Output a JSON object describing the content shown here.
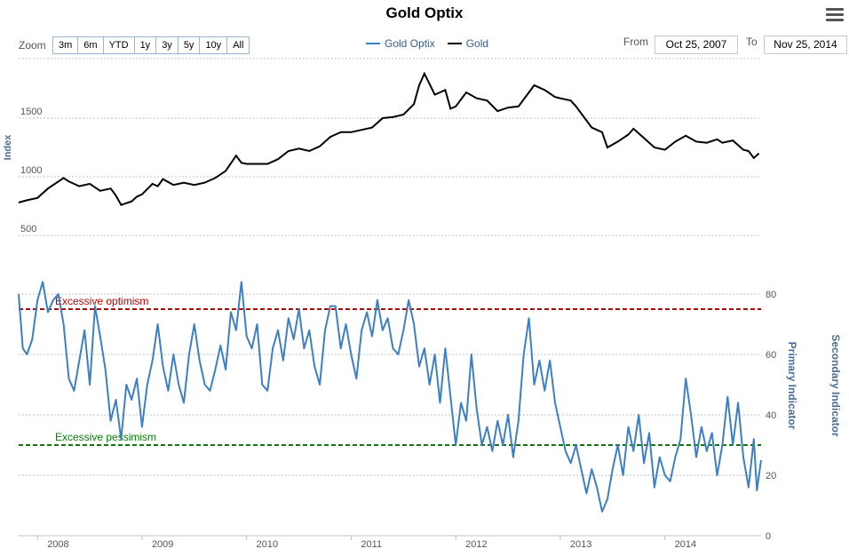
{
  "title": "Gold Optix",
  "zoom": {
    "label": "Zoom",
    "buttons": [
      "3m",
      "6m",
      "YTD",
      "1y",
      "3y",
      "5y",
      "10y",
      "All"
    ]
  },
  "date_range": {
    "from_label": "From",
    "from_value": "Oct 25, 2007",
    "to_label": "To",
    "to_value": "Nov 25, 2014"
  },
  "icons": {
    "menu": "hamburger-menu-icon"
  },
  "colors": {
    "optix": "#3d7fc4",
    "gold": "#000000",
    "optimism": "#c00000",
    "pessimism": "#008000"
  },
  "chart_data": [
    {
      "type": "line",
      "ylabel": "Index",
      "yticks": [
        500,
        1000,
        1500
      ],
      "ylim": [
        500,
        2000
      ],
      "grid": true,
      "series": [
        {
          "name": "Gold",
          "points": [
            [
              2007.82,
              780
            ],
            [
              2007.9,
              800
            ],
            [
              2008.0,
              820
            ],
            [
              2008.1,
              900
            ],
            [
              2008.2,
              960
            ],
            [
              2008.25,
              990
            ],
            [
              2008.3,
              960
            ],
            [
              2008.4,
              920
            ],
            [
              2008.5,
              940
            ],
            [
              2008.6,
              880
            ],
            [
              2008.7,
              900
            ],
            [
              2008.75,
              840
            ],
            [
              2008.8,
              760
            ],
            [
              2008.9,
              790
            ],
            [
              2008.95,
              830
            ],
            [
              2009.0,
              850
            ],
            [
              2009.1,
              940
            ],
            [
              2009.15,
              920
            ],
            [
              2009.2,
              980
            ],
            [
              2009.3,
              930
            ],
            [
              2009.4,
              950
            ],
            [
              2009.5,
              930
            ],
            [
              2009.6,
              950
            ],
            [
              2009.7,
              990
            ],
            [
              2009.8,
              1050
            ],
            [
              2009.9,
              1180
            ],
            [
              2009.95,
              1120
            ],
            [
              2010.0,
              1110
            ],
            [
              2010.1,
              1110
            ],
            [
              2010.2,
              1110
            ],
            [
              2010.3,
              1150
            ],
            [
              2010.4,
              1220
            ],
            [
              2010.5,
              1240
            ],
            [
              2010.6,
              1220
            ],
            [
              2010.7,
              1260
            ],
            [
              2010.8,
              1340
            ],
            [
              2010.9,
              1380
            ],
            [
              2011.0,
              1380
            ],
            [
              2011.1,
              1400
            ],
            [
              2011.2,
              1420
            ],
            [
              2011.3,
              1500
            ],
            [
              2011.4,
              1510
            ],
            [
              2011.5,
              1530
            ],
            [
              2011.6,
              1620
            ],
            [
              2011.65,
              1780
            ],
            [
              2011.7,
              1880
            ],
            [
              2011.8,
              1700
            ],
            [
              2011.9,
              1740
            ],
            [
              2011.95,
              1580
            ],
            [
              2012.0,
              1600
            ],
            [
              2012.1,
              1720
            ],
            [
              2012.2,
              1670
            ],
            [
              2012.3,
              1650
            ],
            [
              2012.4,
              1560
            ],
            [
              2012.5,
              1590
            ],
            [
              2012.6,
              1600
            ],
            [
              2012.7,
              1720
            ],
            [
              2012.75,
              1780
            ],
            [
              2012.85,
              1740
            ],
            [
              2012.95,
              1680
            ],
            [
              2013.0,
              1670
            ],
            [
              2013.1,
              1650
            ],
            [
              2013.15,
              1600
            ],
            [
              2013.25,
              1480
            ],
            [
              2013.3,
              1420
            ],
            [
              2013.4,
              1380
            ],
            [
              2013.45,
              1250
            ],
            [
              2013.55,
              1300
            ],
            [
              2013.65,
              1360
            ],
            [
              2013.7,
              1410
            ],
            [
              2013.8,
              1330
            ],
            [
              2013.9,
              1250
            ],
            [
              2014.0,
              1230
            ],
            [
              2014.1,
              1300
            ],
            [
              2014.2,
              1350
            ],
            [
              2014.3,
              1300
            ],
            [
              2014.4,
              1290
            ],
            [
              2014.5,
              1320
            ],
            [
              2014.55,
              1290
            ],
            [
              2014.65,
              1310
            ],
            [
              2014.7,
              1270
            ],
            [
              2014.75,
              1230
            ],
            [
              2014.8,
              1220
            ],
            [
              2014.85,
              1160
            ],
            [
              2014.9,
              1200
            ]
          ]
        }
      ]
    },
    {
      "type": "line",
      "ylabel": "Primary Indicator",
      "y2label": "Secondary Indicator",
      "yticks": [
        0,
        20,
        40,
        60,
        80
      ],
      "ylim": [
        0,
        85
      ],
      "xticks": [
        "2008",
        "2009",
        "2010",
        "2011",
        "2012",
        "2013",
        "2014"
      ],
      "grid": true,
      "reference_lines": [
        {
          "label": "Excessive optimism",
          "value": 75
        },
        {
          "label": "Excessive pessimism",
          "value": 30
        }
      ],
      "series": [
        {
          "name": "Gold Optix",
          "points": [
            [
              2007.82,
              80
            ],
            [
              2007.86,
              62
            ],
            [
              2007.9,
              60
            ],
            [
              2007.95,
              65
            ],
            [
              2008.0,
              78
            ],
            [
              2008.05,
              84
            ],
            [
              2008.1,
              74
            ],
            [
              2008.15,
              78
            ],
            [
              2008.2,
              80
            ],
            [
              2008.25,
              70
            ],
            [
              2008.3,
              52
            ],
            [
              2008.35,
              48
            ],
            [
              2008.4,
              58
            ],
            [
              2008.45,
              68
            ],
            [
              2008.5,
              50
            ],
            [
              2008.55,
              76
            ],
            [
              2008.6,
              66
            ],
            [
              2008.65,
              55
            ],
            [
              2008.7,
              38
            ],
            [
              2008.75,
              45
            ],
            [
              2008.8,
              32
            ],
            [
              2008.85,
              50
            ],
            [
              2008.9,
              45
            ],
            [
              2008.95,
              52
            ],
            [
              2009.0,
              36
            ],
            [
              2009.05,
              50
            ],
            [
              2009.1,
              58
            ],
            [
              2009.15,
              70
            ],
            [
              2009.2,
              56
            ],
            [
              2009.25,
              48
            ],
            [
              2009.3,
              60
            ],
            [
              2009.35,
              50
            ],
            [
              2009.4,
              44
            ],
            [
              2009.45,
              60
            ],
            [
              2009.5,
              70
            ],
            [
              2009.55,
              58
            ],
            [
              2009.6,
              50
            ],
            [
              2009.65,
              48
            ],
            [
              2009.7,
              55
            ],
            [
              2009.75,
              63
            ],
            [
              2009.8,
              55
            ],
            [
              2009.85,
              74
            ],
            [
              2009.9,
              68
            ],
            [
              2009.95,
              84
            ],
            [
              2010.0,
              66
            ],
            [
              2010.05,
              62
            ],
            [
              2010.1,
              70
            ],
            [
              2010.15,
              50
            ],
            [
              2010.2,
              48
            ],
            [
              2010.25,
              62
            ],
            [
              2010.3,
              68
            ],
            [
              2010.35,
              58
            ],
            [
              2010.4,
              72
            ],
            [
              2010.45,
              65
            ],
            [
              2010.5,
              75
            ],
            [
              2010.55,
              62
            ],
            [
              2010.6,
              68
            ],
            [
              2010.65,
              56
            ],
            [
              2010.7,
              50
            ],
            [
              2010.75,
              68
            ],
            [
              2010.8,
              76
            ],
            [
              2010.85,
              76
            ],
            [
              2010.9,
              62
            ],
            [
              2010.95,
              70
            ],
            [
              2011.0,
              60
            ],
            [
              2011.05,
              52
            ],
            [
              2011.1,
              68
            ],
            [
              2011.15,
              74
            ],
            [
              2011.2,
              66
            ],
            [
              2011.25,
              78
            ],
            [
              2011.3,
              68
            ],
            [
              2011.35,
              72
            ],
            [
              2011.4,
              62
            ],
            [
              2011.45,
              60
            ],
            [
              2011.5,
              68
            ],
            [
              2011.55,
              78
            ],
            [
              2011.6,
              70
            ],
            [
              2011.65,
              56
            ],
            [
              2011.7,
              62
            ],
            [
              2011.75,
              50
            ],
            [
              2011.8,
              60
            ],
            [
              2011.85,
              44
            ],
            [
              2011.9,
              62
            ],
            [
              2011.95,
              46
            ],
            [
              2012.0,
              30
            ],
            [
              2012.05,
              44
            ],
            [
              2012.1,
              38
            ],
            [
              2012.15,
              60
            ],
            [
              2012.2,
              42
            ],
            [
              2012.25,
              30
            ],
            [
              2012.3,
              36
            ],
            [
              2012.35,
              28
            ],
            [
              2012.4,
              38
            ],
            [
              2012.45,
              30
            ],
            [
              2012.5,
              40
            ],
            [
              2012.55,
              26
            ],
            [
              2012.6,
              38
            ],
            [
              2012.65,
              60
            ],
            [
              2012.7,
              72
            ],
            [
              2012.75,
              50
            ],
            [
              2012.8,
              58
            ],
            [
              2012.85,
              48
            ],
            [
              2012.9,
              58
            ],
            [
              2012.95,
              44
            ],
            [
              2013.0,
              36
            ],
            [
              2013.05,
              28
            ],
            [
              2013.1,
              24
            ],
            [
              2013.15,
              30
            ],
            [
              2013.2,
              22
            ],
            [
              2013.25,
              14
            ],
            [
              2013.3,
              22
            ],
            [
              2013.35,
              16
            ],
            [
              2013.4,
              8
            ],
            [
              2013.45,
              12
            ],
            [
              2013.5,
              22
            ],
            [
              2013.55,
              30
            ],
            [
              2013.6,
              20
            ],
            [
              2013.65,
              36
            ],
            [
              2013.7,
              28
            ],
            [
              2013.75,
              40
            ],
            [
              2013.8,
              24
            ],
            [
              2013.85,
              34
            ],
            [
              2013.9,
              16
            ],
            [
              2013.95,
              26
            ],
            [
              2014.0,
              20
            ],
            [
              2014.05,
              18
            ],
            [
              2014.1,
              26
            ],
            [
              2014.15,
              32
            ],
            [
              2014.2,
              52
            ],
            [
              2014.25,
              40
            ],
            [
              2014.3,
              26
            ],
            [
              2014.35,
              36
            ],
            [
              2014.4,
              28
            ],
            [
              2014.45,
              34
            ],
            [
              2014.5,
              20
            ],
            [
              2014.55,
              30
            ],
            [
              2014.6,
              46
            ],
            [
              2014.65,
              30
            ],
            [
              2014.7,
              44
            ],
            [
              2014.75,
              26
            ],
            [
              2014.8,
              16
            ],
            [
              2014.85,
              32
            ],
            [
              2014.88,
              15
            ],
            [
              2014.92,
              25
            ]
          ]
        }
      ]
    }
  ]
}
